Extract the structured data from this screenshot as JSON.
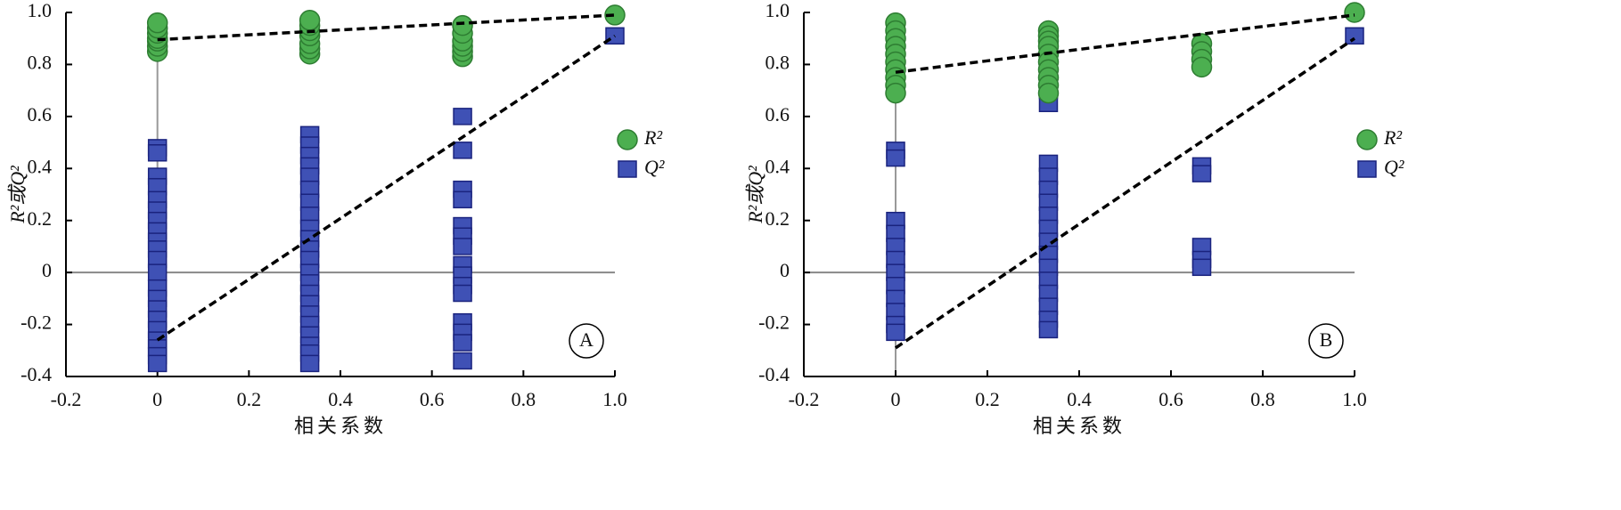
{
  "chart_data": [
    {
      "type": "scatter",
      "panel_label": "A",
      "xlabel": "相关系数",
      "ylabel": "R²或Q²",
      "xlim": [
        -0.2,
        1.0
      ],
      "xticks": [
        -0.2,
        0,
        0.2,
        0.4,
        0.6,
        0.8,
        {
          "value": 1,
          "label": "1.0"
        }
      ],
      "ylim": [
        -0.4,
        1.0
      ],
      "yticks": [
        -0.4,
        -0.2,
        0,
        0.2,
        0.4,
        0.6,
        0.8,
        {
          "value": 1,
          "label": "1.0"
        }
      ],
      "legend": "right",
      "series": [
        {
          "name": "R²",
          "color": "#4caf50",
          "marker": "circle",
          "x": [
            0,
            0,
            0,
            0,
            0,
            0,
            0,
            0.333,
            0.333,
            0.333,
            0.333,
            0.333,
            0.333,
            0.333,
            0.667,
            0.667,
            0.667,
            0.667,
            0.667,
            0.667,
            1
          ],
          "values": [
            0.85,
            0.87,
            0.89,
            0.9,
            0.92,
            0.94,
            0.96,
            0.84,
            0.86,
            0.88,
            0.91,
            0.93,
            0.95,
            0.97,
            0.83,
            0.85,
            0.87,
            0.89,
            0.92,
            0.95,
            0.99
          ]
        },
        {
          "name": "Q²",
          "color": "#3f51b5",
          "marker": "square",
          "x": [
            0,
            0,
            0,
            0,
            0,
            0,
            0,
            0,
            0,
            0,
            0,
            0,
            0,
            0,
            0,
            0,
            0,
            0,
            0,
            0,
            0,
            0.333,
            0.333,
            0.333,
            0.333,
            0.333,
            0.333,
            0.333,
            0.333,
            0.333,
            0.333,
            0.333,
            0.333,
            0.333,
            0.333,
            0.333,
            0.333,
            0.333,
            0.333,
            0.333,
            0.333,
            0.333,
            0.333,
            0.667,
            0.667,
            0.667,
            0.667,
            0.667,
            0.667,
            0.667,
            0.667,
            0.667,
            0.667,
            0.667,
            0.667,
            0.667,
            0.667,
            0.667,
            1
          ],
          "values": [
            0.48,
            0.46,
            0.37,
            0.33,
            0.28,
            0.24,
            0.2,
            0.16,
            0.12,
            0.09,
            0.05,
            0.0,
            -0.06,
            -0.1,
            -0.14,
            -0.18,
            -0.22,
            -0.26,
            -0.29,
            -0.32,
            -0.35,
            0.53,
            0.49,
            0.45,
            0.41,
            0.37,
            0.32,
            0.27,
            0.22,
            0.17,
            0.13,
            0.09,
            0.05,
            0.0,
            -0.04,
            -0.08,
            -0.12,
            -0.16,
            -0.2,
            -0.24,
            -0.28,
            -0.31,
            -0.35,
            0.6,
            0.47,
            0.32,
            0.28,
            0.18,
            0.14,
            0.1,
            0.03,
            -0.01,
            -0.05,
            -0.08,
            -0.19,
            -0.23,
            -0.27,
            -0.34,
            0.91
          ]
        }
      ],
      "trend_lines": [
        {
          "x": [
            0,
            1
          ],
          "values": [
            0.895,
            0.99
          ]
        },
        {
          "x": [
            0,
            1
          ],
          "values": [
            -0.26,
            0.91
          ]
        }
      ]
    },
    {
      "type": "scatter",
      "panel_label": "B",
      "xlabel": "相关系数",
      "ylabel": "R²或Q²",
      "xlim": [
        -0.2,
        1.0
      ],
      "xticks": [
        -0.2,
        0,
        0.2,
        0.4,
        0.6,
        0.8,
        {
          "value": 1,
          "label": "1.0"
        }
      ],
      "ylim": [
        -0.4,
        1.0
      ],
      "yticks": [
        -0.4,
        -0.2,
        0,
        0.2,
        0.4,
        0.6,
        0.8,
        {
          "value": 1,
          "label": "1.0"
        }
      ],
      "legend": "right",
      "series": [
        {
          "name": "R²",
          "color": "#4caf50",
          "marker": "circle",
          "x": [
            0,
            0,
            0,
            0,
            0,
            0,
            0,
            0,
            0,
            0,
            0.333,
            0.333,
            0.333,
            0.333,
            0.333,
            0.333,
            0.333,
            0.333,
            0.333,
            0.333,
            0.667,
            0.667,
            0.667,
            0.667,
            1
          ],
          "values": [
            0.96,
            0.93,
            0.9,
            0.87,
            0.84,
            0.81,
            0.78,
            0.75,
            0.72,
            0.69,
            0.93,
            0.91,
            0.89,
            0.87,
            0.84,
            0.81,
            0.78,
            0.75,
            0.72,
            0.69,
            0.88,
            0.85,
            0.82,
            0.79,
            1.0
          ]
        },
        {
          "name": "Q²",
          "color": "#3f51b5",
          "marker": "square",
          "x": [
            0,
            0,
            0,
            0,
            0,
            0,
            0,
            0,
            0,
            0,
            0,
            0,
            0.333,
            0.333,
            0.333,
            0.333,
            0.333,
            0.333,
            0.333,
            0.333,
            0.333,
            0.333,
            0.333,
            0.333,
            0.333,
            0.333,
            0.333,
            0.333,
            0.667,
            0.667,
            0.667,
            0.667,
            0.667,
            1
          ],
          "values": [
            0.47,
            0.44,
            0.2,
            0.15,
            0.1,
            0.05,
            0.0,
            -0.05,
            -0.1,
            -0.15,
            -0.2,
            -0.23,
            0.7,
            0.65,
            0.42,
            0.37,
            0.32,
            0.27,
            0.22,
            0.17,
            0.12,
            0.07,
            0.02,
            -0.03,
            -0.08,
            -0.13,
            -0.18,
            -0.22,
            0.41,
            0.38,
            0.1,
            0.05,
            0.02,
            0.91
          ]
        }
      ],
      "trend_lines": [
        {
          "x": [
            0,
            1
          ],
          "values": [
            0.77,
            0.99
          ]
        },
        {
          "x": [
            0,
            1
          ],
          "values": [
            -0.29,
            0.9
          ]
        }
      ]
    }
  ]
}
